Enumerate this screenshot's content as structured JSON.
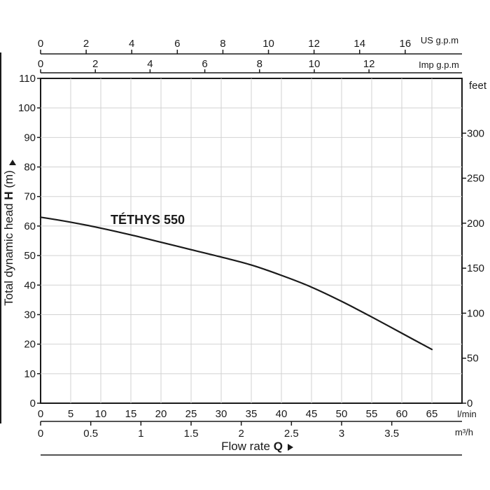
{
  "chart_data": {
    "type": "line",
    "title": "",
    "curve_label": "TÉTHYS 550",
    "xlabel": "Flow rate",
    "xlabel_symbol": "Q",
    "ylabel": "Total dynamic head",
    "ylabel_symbol": "H",
    "ylabel_unit": "(m)",
    "grid": true,
    "x_unit": "l/min",
    "xlim": [
      0,
      70
    ],
    "x_ticks": [
      0,
      5,
      10,
      15,
      20,
      25,
      30,
      35,
      40,
      45,
      50,
      55,
      60,
      65
    ],
    "ylim": [
      0,
      110
    ],
    "y_ticks": [
      0,
      10,
      20,
      30,
      40,
      50,
      60,
      70,
      80,
      90,
      100,
      110
    ],
    "right_axis": {
      "unit": "feet",
      "ticks": [
        0,
        50,
        100,
        150,
        200,
        250,
        300
      ]
    },
    "bottom_axis_m3h": {
      "unit": "m³/h",
      "ticks": [
        "0",
        "0.5",
        "1",
        "1.5",
        "2",
        "2.5",
        "3",
        "3.5"
      ]
    },
    "top_axis_us_gpm": {
      "unit": "US g.p.m",
      "ticks": [
        0,
        2,
        4,
        6,
        8,
        10,
        12,
        14,
        16
      ]
    },
    "top_axis_imp_gpm": {
      "unit": "Imp g.p.m",
      "ticks": [
        0,
        2,
        4,
        6,
        8,
        10,
        12
      ]
    },
    "series": [
      {
        "name": "TÉTHYS 550",
        "x": [
          0,
          5,
          10,
          15,
          20,
          25,
          30,
          35,
          40,
          45,
          50,
          55,
          60,
          65
        ],
        "y": [
          63,
          61.3,
          59.3,
          57,
          54.5,
          52,
          49.5,
          46.8,
          43.3,
          39.3,
          34.5,
          29.2,
          23.7,
          18.2
        ]
      }
    ]
  }
}
